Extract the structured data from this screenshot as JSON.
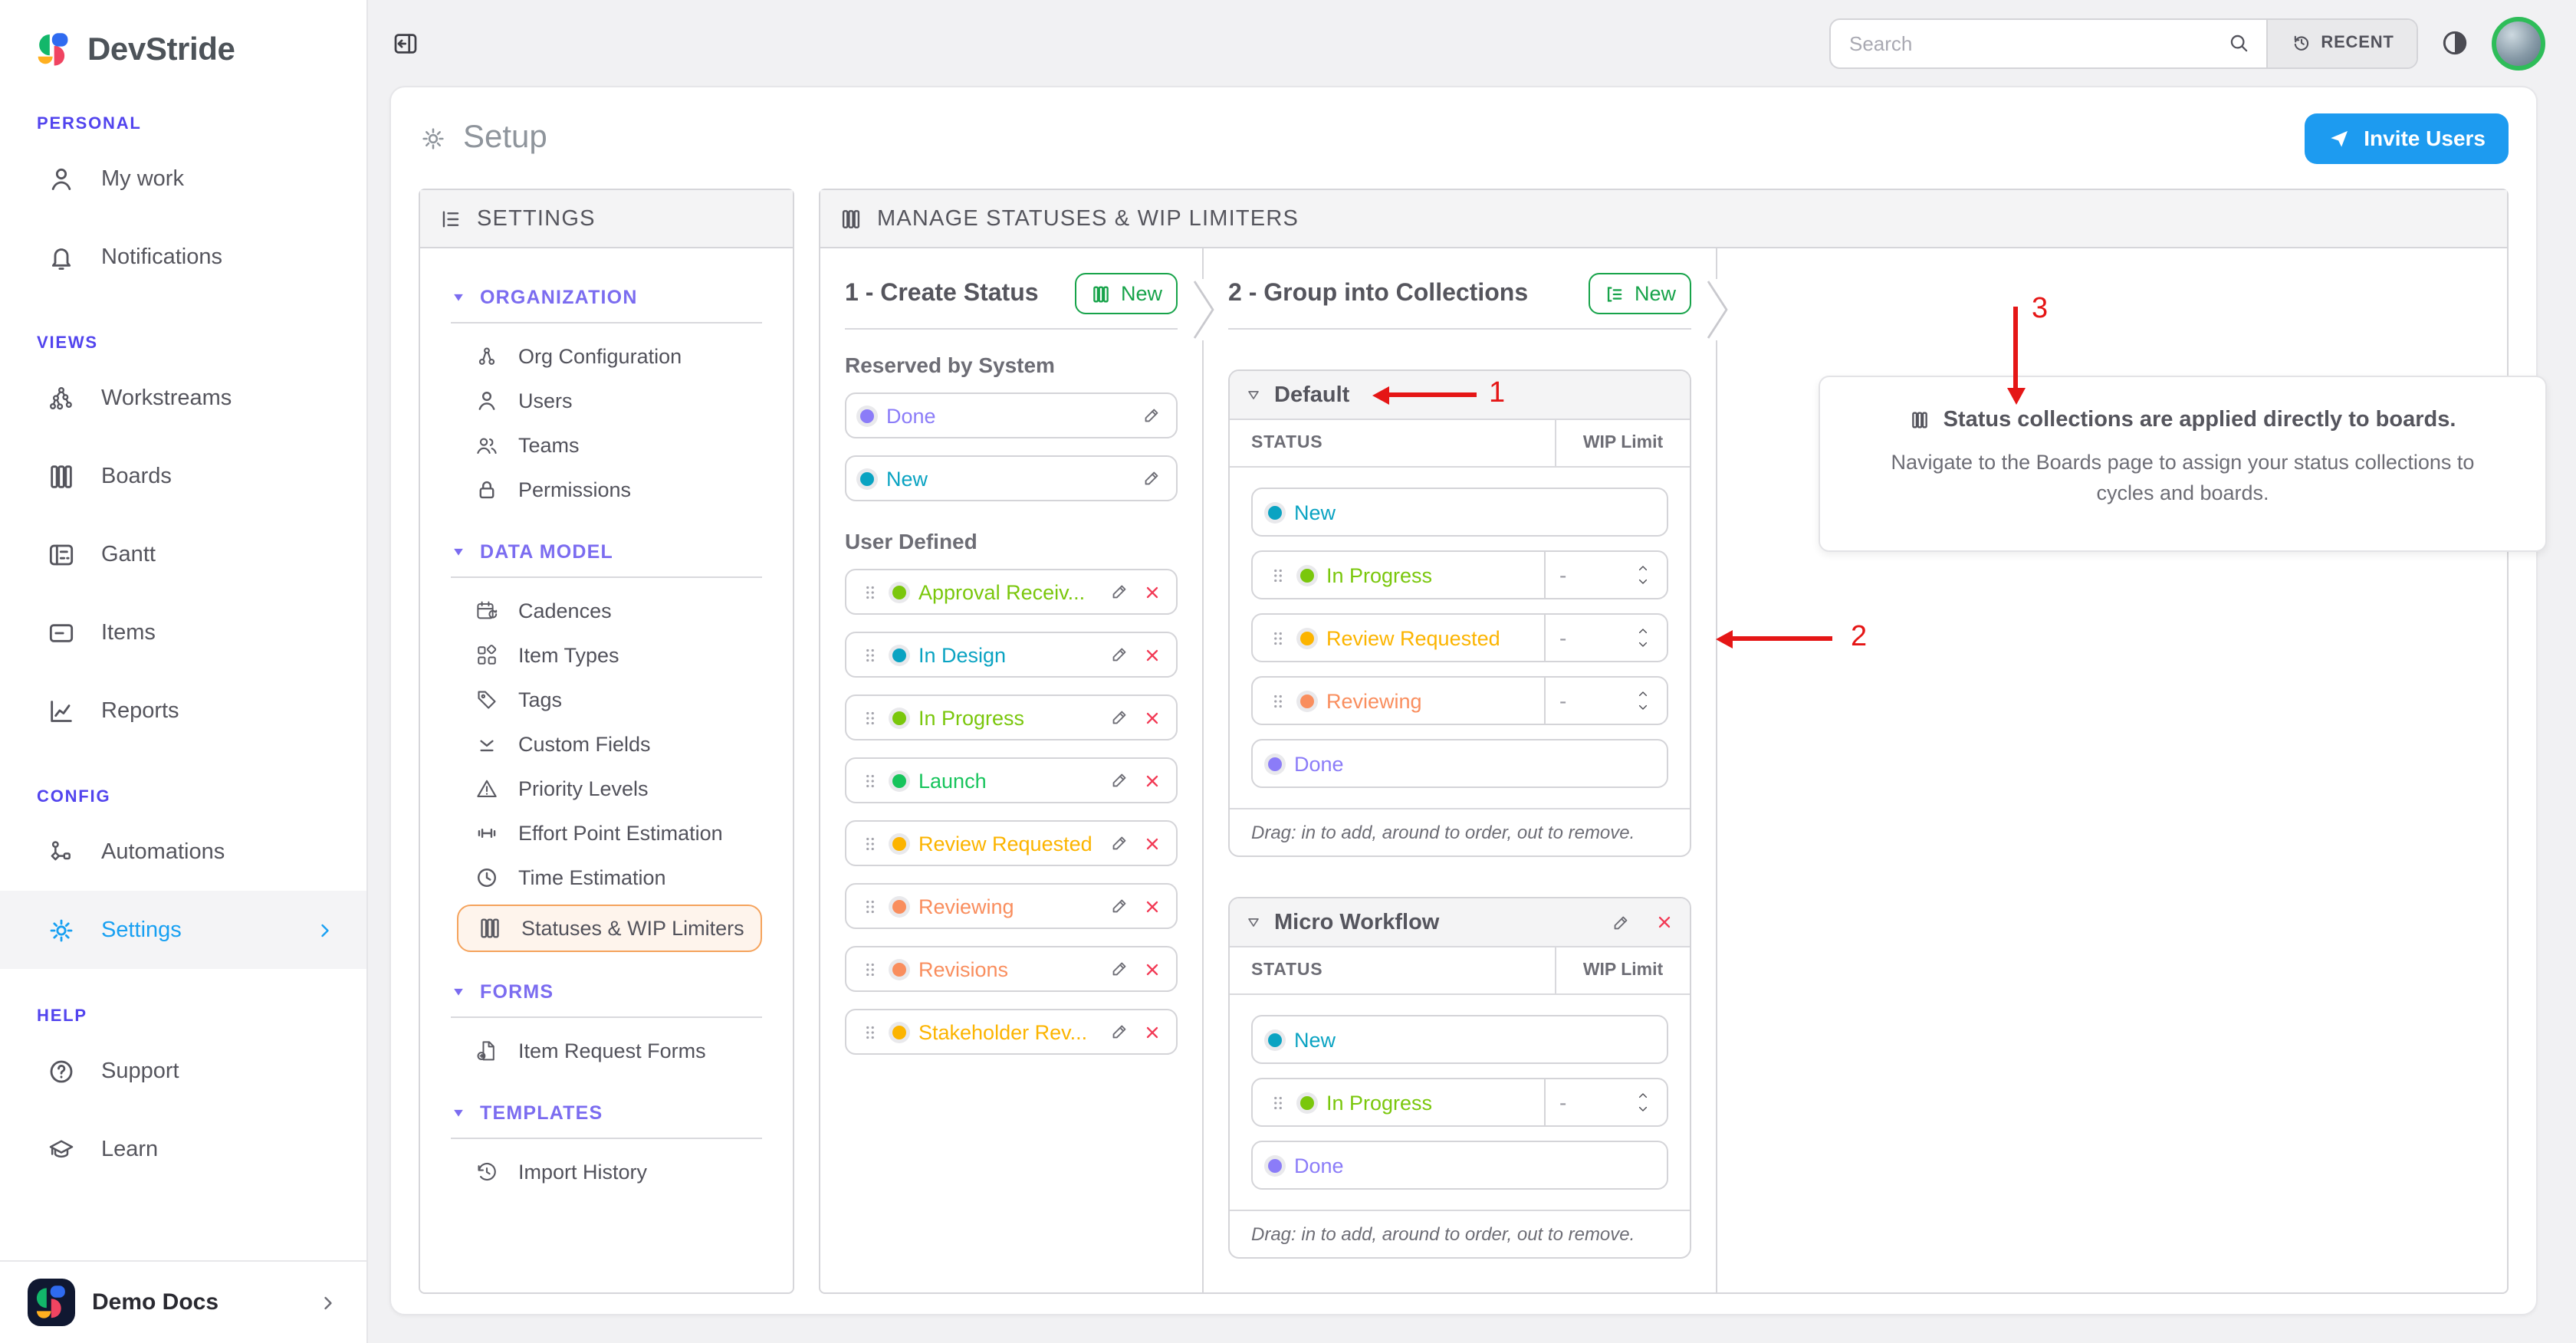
{
  "brand": {
    "name": "DevStride"
  },
  "sidebar": {
    "sections": [
      {
        "label": "PERSONAL",
        "items": [
          {
            "label": "My work",
            "icon": "user"
          },
          {
            "label": "Notifications",
            "icon": "bell"
          }
        ]
      },
      {
        "label": "VIEWS",
        "items": [
          {
            "label": "Workstreams",
            "icon": "workstreams"
          },
          {
            "label": "Boards",
            "icon": "boards"
          },
          {
            "label": "Gantt",
            "icon": "gantt"
          },
          {
            "label": "Items",
            "icon": "items"
          },
          {
            "label": "Reports",
            "icon": "reports"
          }
        ]
      },
      {
        "label": "CONFIG",
        "items": [
          {
            "label": "Automations",
            "icon": "automations"
          },
          {
            "label": "Settings",
            "icon": "gear",
            "active": true,
            "chevron": true
          }
        ]
      },
      {
        "label": "HELP",
        "items": [
          {
            "label": "Support",
            "icon": "help"
          },
          {
            "label": "Learn",
            "icon": "learn"
          }
        ]
      }
    ],
    "footer": {
      "label": "Demo Docs"
    }
  },
  "topbar": {
    "search_placeholder": "Search",
    "recent_label": "RECENT"
  },
  "page": {
    "title": "Setup",
    "invite_label": "Invite Users"
  },
  "settings_nav": {
    "title": "SETTINGS",
    "groups": [
      {
        "label": "ORGANIZATION",
        "items": [
          {
            "label": "Org Configuration",
            "icon": "org"
          },
          {
            "label": "Users",
            "icon": "user"
          },
          {
            "label": "Teams",
            "icon": "teams"
          },
          {
            "label": "Permissions",
            "icon": "lock"
          }
        ]
      },
      {
        "label": "DATA MODEL",
        "items": [
          {
            "label": "Cadences",
            "icon": "cadences"
          },
          {
            "label": "Item Types",
            "icon": "itemtypes"
          },
          {
            "label": "Tags",
            "icon": "tag"
          },
          {
            "label": "Custom Fields",
            "icon": "customfields"
          },
          {
            "label": "Priority Levels",
            "icon": "priority"
          },
          {
            "label": "Effort Point Estimation",
            "icon": "effort"
          },
          {
            "label": "Time Estimation",
            "icon": "time"
          },
          {
            "label": "Statuses & WIP Limiters",
            "icon": "statuses",
            "active": true
          }
        ]
      },
      {
        "label": "FORMS",
        "items": [
          {
            "label": "Item Request Forms",
            "icon": "docarrow"
          }
        ]
      },
      {
        "label": "TEMPLATES",
        "items": [
          {
            "label": "Import History",
            "icon": "history"
          }
        ]
      }
    ]
  },
  "manage": {
    "title": "MANAGE STATUSES & WIP LIMITERS",
    "create": {
      "title": "1 - Create Status",
      "new_label": "New",
      "reserved_label": "Reserved by System",
      "reserved": [
        {
          "name": "Done",
          "color": "#8b7cf8"
        },
        {
          "name": "New",
          "color": "#0aa3c2"
        }
      ],
      "user_label": "User Defined",
      "user": [
        {
          "name": "Approval Receiv...",
          "color": "#7ac70c"
        },
        {
          "name": "In Design",
          "color": "#0aa3c2"
        },
        {
          "name": "In Progress",
          "color": "#7ac70c"
        },
        {
          "name": "Launch",
          "color": "#17c45c"
        },
        {
          "name": "Review Requested",
          "color": "#fcb400"
        },
        {
          "name": "Reviewing",
          "color": "#f98e5e"
        },
        {
          "name": "Revisions",
          "color": "#f98e5e"
        },
        {
          "name": "Stakeholder Rev...",
          "color": "#fcb400"
        }
      ]
    },
    "collections": {
      "title": "2 - Group into Collections",
      "new_label": "New",
      "status_header": "STATUS",
      "wip_header": "WIP Limit",
      "wip_placeholder": "-",
      "drag_hint": "Drag: in to add, around to order, out to remove.",
      "groups": [
        {
          "name": "Default",
          "editable": false,
          "rows": [
            {
              "name": "New",
              "color": "#0aa3c2",
              "fixed": true
            },
            {
              "name": "In Progress",
              "color": "#7ac70c"
            },
            {
              "name": "Review Requested",
              "color": "#fcb400"
            },
            {
              "name": "Reviewing",
              "color": "#f98e5e"
            },
            {
              "name": "Done",
              "color": "#8b7cf8",
              "fixed": true
            }
          ]
        },
        {
          "name": "Micro Workflow",
          "editable": true,
          "rows": [
            {
              "name": "New",
              "color": "#0aa3c2",
              "fixed": true
            },
            {
              "name": "In Progress",
              "color": "#7ac70c"
            },
            {
              "name": "Done",
              "color": "#8b7cf8",
              "fixed": true
            }
          ]
        }
      ]
    },
    "info": {
      "title": "Status collections are applied directly to boards.",
      "body": "Navigate to the Boards page to assign your status collections to cycles and boards."
    },
    "annotations": {
      "a1": "1",
      "a2": "2",
      "a3": "3"
    }
  },
  "colors": {
    "accent_blue": "#1d9bf0",
    "green": "#17a34a",
    "annotation_red": "#e51616",
    "danger": "#f23a55",
    "section_purple": "#5244ee",
    "active_orange": "#f5a35c"
  }
}
